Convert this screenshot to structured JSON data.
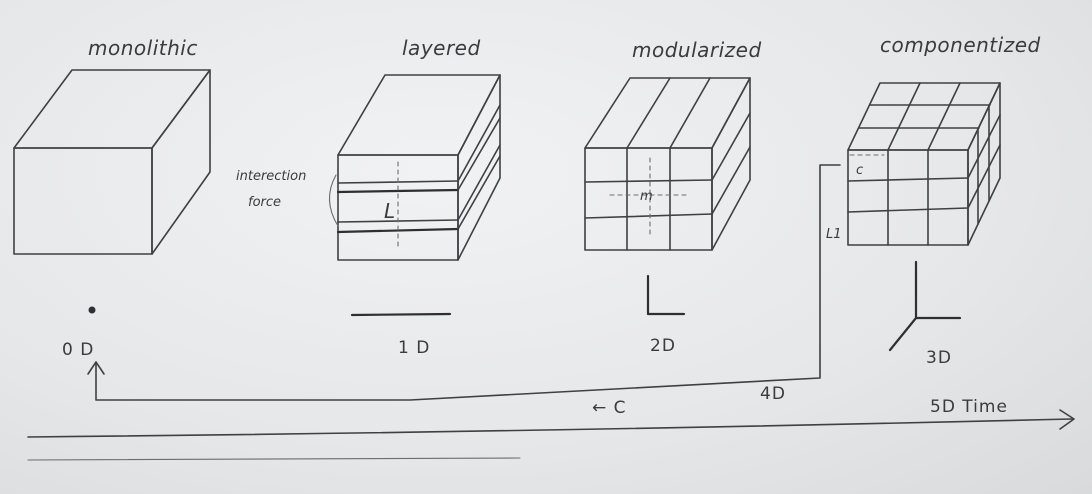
{
  "stages": [
    {
      "id": "monolithic",
      "title": "monolithic",
      "dimension": "0 D"
    },
    {
      "id": "layered",
      "title": "layered",
      "dimension": "1 D",
      "annotation": [
        "interection",
        "force"
      ],
      "inner_label": "L"
    },
    {
      "id": "modularized",
      "title": "modularized",
      "dimension": "2D",
      "inner_label": "m"
    },
    {
      "id": "componentized",
      "title": "componentized",
      "dimension": "3D",
      "inner_label": "c",
      "side_label": "L1"
    }
  ],
  "feedback": {
    "label": "4D",
    "direction_label": "← C"
  },
  "timeline": {
    "label": "5D  Time"
  },
  "colors": {
    "paper": "#e7e8ea",
    "ink": "#3f4044"
  }
}
